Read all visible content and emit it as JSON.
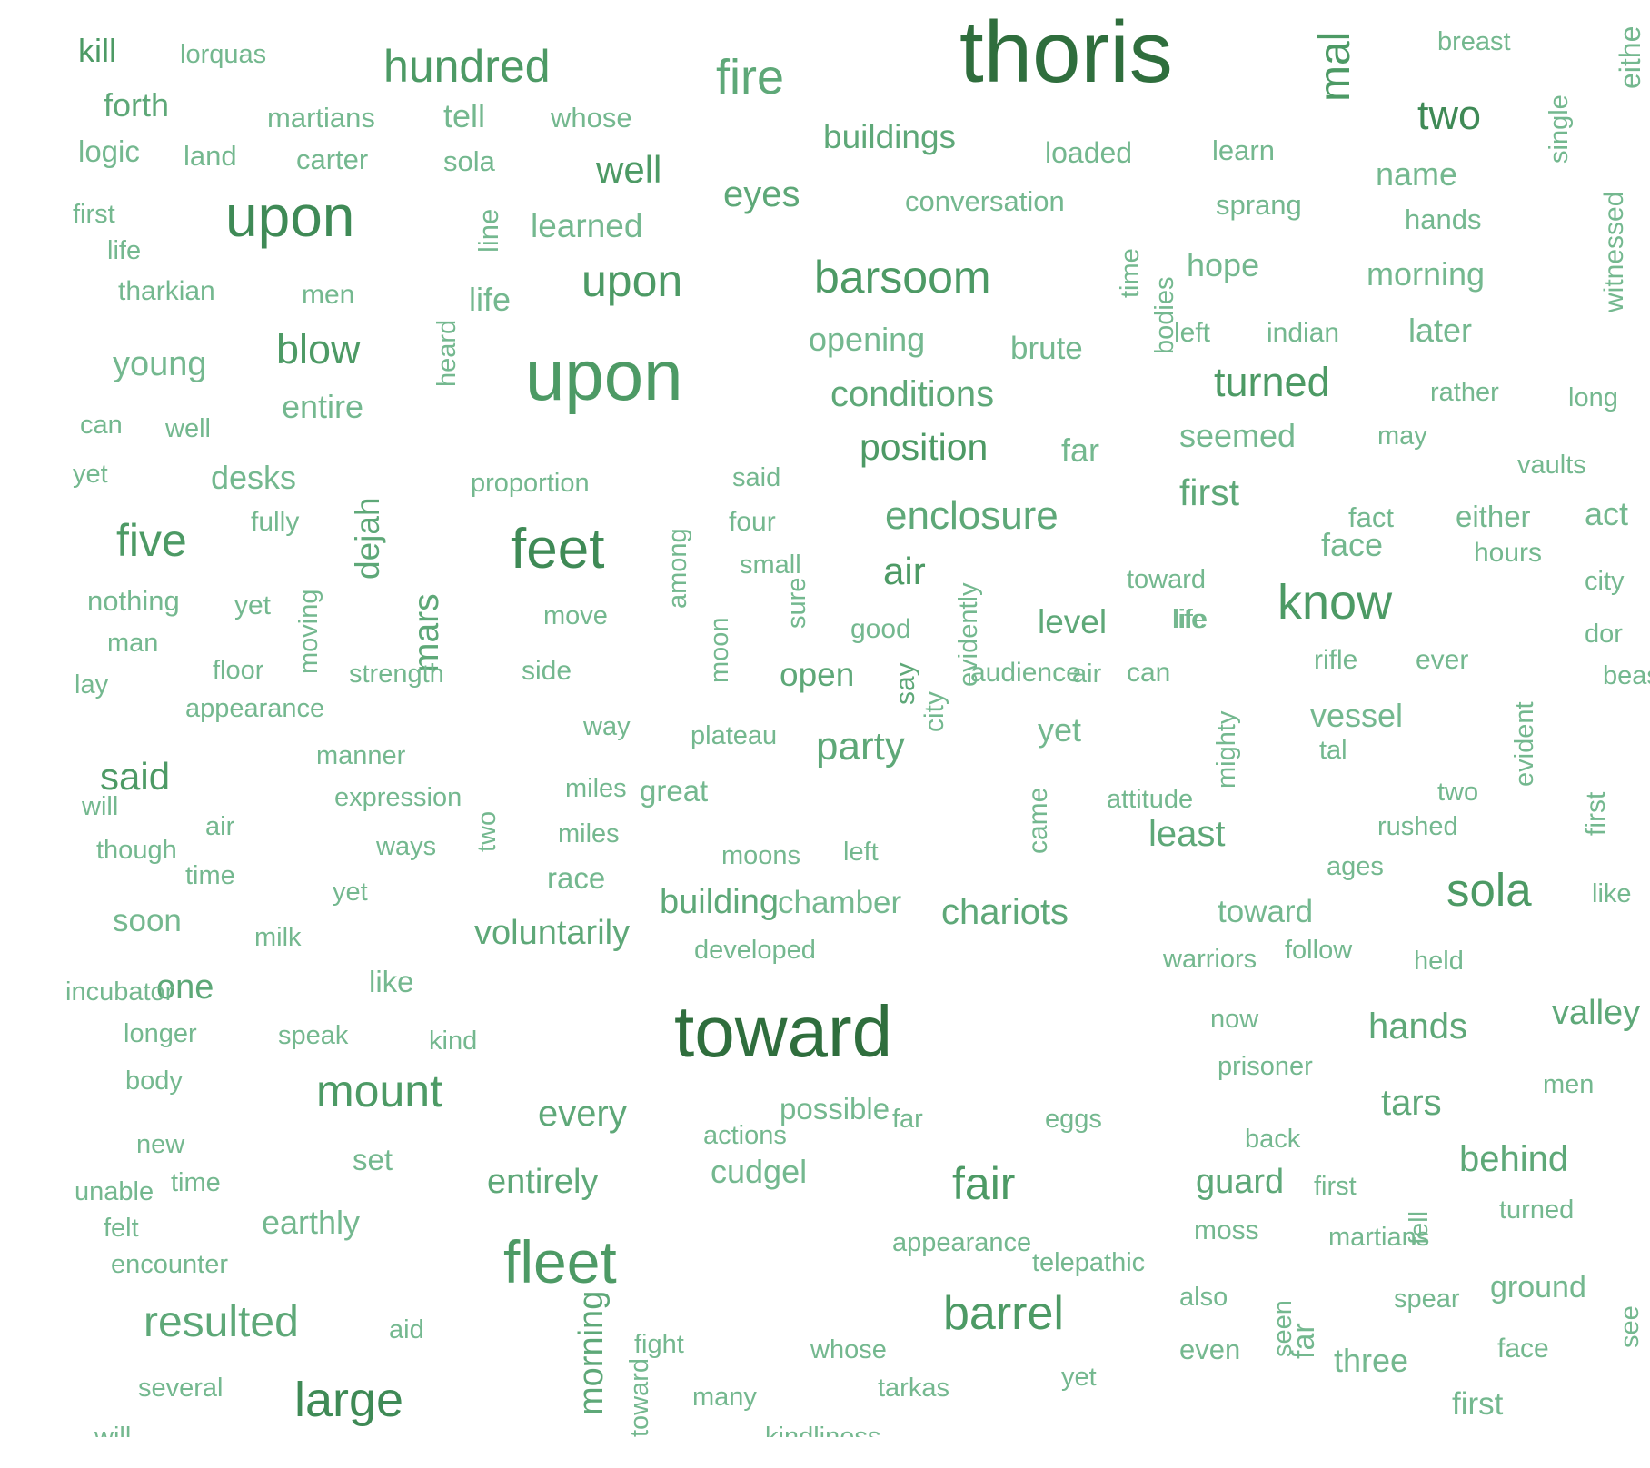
{
  "colors": {
    "light": "#74b88f",
    "mid": "#5ea878",
    "green": "#4d9a65",
    "deep": "#3f8a56",
    "dark": "#2f6e3d"
  },
  "words": [
    "kill",
    "lorquas",
    "hundred",
    "fire",
    "thoris",
    "mal",
    "breast",
    "eithe",
    "forth",
    "martians",
    "tell",
    "whose",
    "two",
    "single",
    "logic",
    "land",
    "carter",
    "sola",
    "well",
    "buildings",
    "loaded",
    "learn",
    "name",
    "first",
    "eyes",
    "conversation",
    "sprang",
    "hands",
    "witnessed",
    "upon",
    "line",
    "learned",
    "life",
    "time",
    "bodies",
    "hope",
    "morning",
    "tharkian",
    "men",
    "life",
    "upon",
    "barsoom",
    "heard",
    "blow",
    "opening",
    "brute",
    "left",
    "indian",
    "later",
    "young",
    "upon",
    "conditions",
    "turned",
    "can",
    "well",
    "entire",
    "rather",
    "long",
    "position",
    "far",
    "seemed",
    "may",
    "yet",
    "desks",
    "proportion",
    "said",
    "vaults",
    "dejah",
    "five",
    "fully",
    "feet",
    "four",
    "enclosure",
    "first",
    "fact",
    "either",
    "act",
    "among",
    "face",
    "small",
    "air",
    "toward",
    "hours",
    "city",
    "nothing",
    "yet",
    "sure",
    "moving",
    "mars",
    "move",
    "know",
    "life",
    "man",
    "moon",
    "good",
    "level",
    "life",
    "dor",
    "floor",
    "rifle",
    "ever",
    "lay",
    "strength",
    "side",
    "open",
    "audience",
    "can",
    "beast",
    "air",
    "appearance",
    "say",
    "way",
    "plateau",
    "evidently",
    "yet",
    "vessel",
    "evident",
    "city",
    "said",
    "manner",
    "party",
    "mighty",
    "two",
    "tal",
    "first",
    "will",
    "miles",
    "great",
    "two",
    "expression",
    "came",
    "attitude",
    "air",
    "rushed",
    "though",
    "miles",
    "least",
    "ways",
    "moons",
    "left",
    "time",
    "ages",
    "race",
    "yet",
    "sola",
    "like",
    "soon",
    "building",
    "chamber",
    "chariots",
    "toward",
    "milk",
    "voluntarily",
    "follow",
    "developed",
    "warriors",
    "held",
    "like",
    "one",
    "incubator",
    "valley",
    "toward",
    "longer",
    "speak",
    "now",
    "hands",
    "kind",
    "prisoner",
    "men",
    "body",
    "mount",
    "tars",
    "every",
    "possible",
    "far",
    "eggs",
    "actions",
    "back",
    "new",
    "behind",
    "set",
    "entirely",
    "unable",
    "cudgel",
    "time",
    "fair",
    "guard",
    "first",
    "turned",
    "felt",
    "earthly",
    "fell",
    "moss",
    "martians",
    "appearance",
    "fleet",
    "encounter",
    "telepathic",
    "see",
    "also",
    "spear",
    "ground",
    "barrel",
    "resulted",
    "aid",
    "fight",
    "whose",
    "even",
    "far",
    "three",
    "face",
    "seen",
    "several",
    "morning",
    "yet",
    "tarkas",
    "many",
    "toward",
    "large",
    "first",
    "will",
    "kindliness"
  ]
}
